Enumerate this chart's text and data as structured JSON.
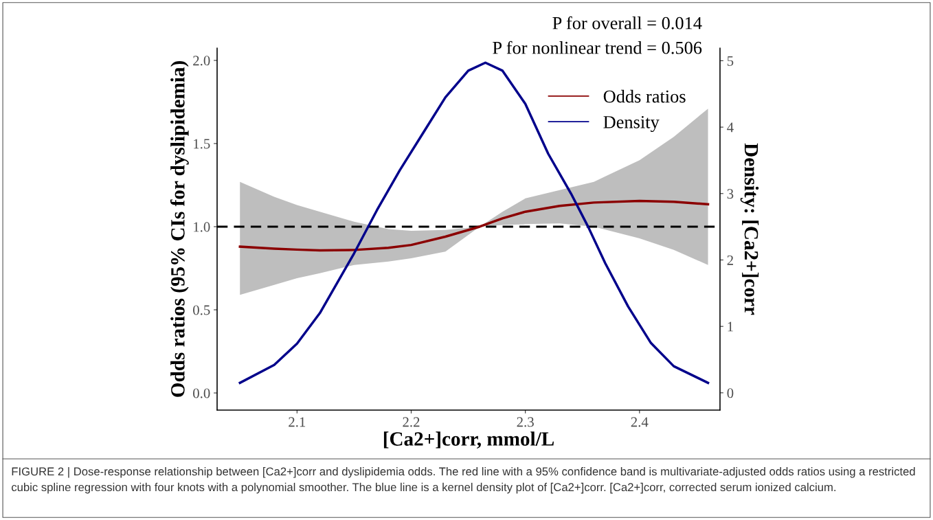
{
  "chart_data": {
    "type": "line",
    "xlabel": "[Ca2+]corr, mmol/L",
    "ylabel": "Odds ratios (95% CIs for dyslipidemia)",
    "y2label": "Density: [Ca2+]corr",
    "xlim": [
      2.03,
      2.4705
    ],
    "xticks": [
      2.1,
      2.2,
      2.3,
      2.4
    ],
    "ylim": [
      -0.103,
      2.074
    ],
    "yticks": [
      {
        "value": 0,
        "label": "0.0"
      },
      0.5,
      {
        "value": 1,
        "label": "1.0"
      },
      1.5,
      {
        "value": 2,
        "label": "2.0"
      }
    ],
    "y2lim": [
      -0.26,
      5.19
    ],
    "y2ticks": [
      0,
      1,
      2,
      3,
      4,
      5
    ],
    "grid": false,
    "legend": "top right",
    "line_style": "solid",
    "marker": "none",
    "series": [
      {
        "name": "Odds ratios",
        "color": "#8b0000",
        "x": [
          2.05,
          2.08,
          2.1,
          2.12,
          2.15,
          2.18,
          2.2,
          2.23,
          2.26,
          2.28,
          2.3,
          2.33,
          2.36,
          2.4,
          2.43,
          2.46
        ],
        "values": [
          0.88,
          0.868,
          0.862,
          0.857,
          0.86,
          0.873,
          0.89,
          0.94,
          1.0,
          1.05,
          1.09,
          1.125,
          1.145,
          1.155,
          1.15,
          1.135
        ],
        "lower": [
          0.59,
          0.65,
          0.69,
          0.72,
          0.77,
          0.79,
          0.81,
          0.85,
          1.0,
          1.01,
          1.015,
          1.02,
          1.0,
          0.93,
          0.86,
          0.77
        ],
        "upper": [
          1.27,
          1.18,
          1.13,
          1.09,
          1.03,
          0.985,
          0.975,
          0.98,
          1.0,
          1.09,
          1.17,
          1.22,
          1.27,
          1.4,
          1.54,
          1.71
        ]
      },
      {
        "name": "Density",
        "color": "#00008b",
        "axis": "y2",
        "x": [
          2.05,
          2.08,
          2.1,
          2.12,
          2.15,
          2.17,
          2.19,
          2.21,
          2.23,
          2.25,
          2.265,
          2.28,
          2.3,
          2.32,
          2.34,
          2.355,
          2.37,
          2.39,
          2.41,
          2.43,
          2.46
        ],
        "values": [
          0.15,
          0.42,
          0.74,
          1.2,
          2.1,
          2.75,
          3.35,
          3.9,
          4.45,
          4.85,
          4.97,
          4.85,
          4.35,
          3.6,
          3.0,
          2.5,
          1.95,
          1.3,
          0.75,
          0.4,
          0.15
        ]
      }
    ],
    "ref_lines": [
      {
        "axis": "y",
        "value": 1,
        "color": "#000000",
        "line_style": "dashed"
      }
    ],
    "annotations": [
      "P for overall = 0.014",
      "P for nonlinear trend = 0.506",
      "FIGURE 2 | Dose-response relationship between [Ca2+]corr and dyslipidemia odds. The red line with a 95% confidence band is multivariate-adjusted odds ratios using a restricted cubic spline regression with four knots with a polynomial smoother. The blue line is a kernel density plot of [Ca2+]corr. [Ca2+]corr, corrected serum ionized calcium."
    ]
  }
}
